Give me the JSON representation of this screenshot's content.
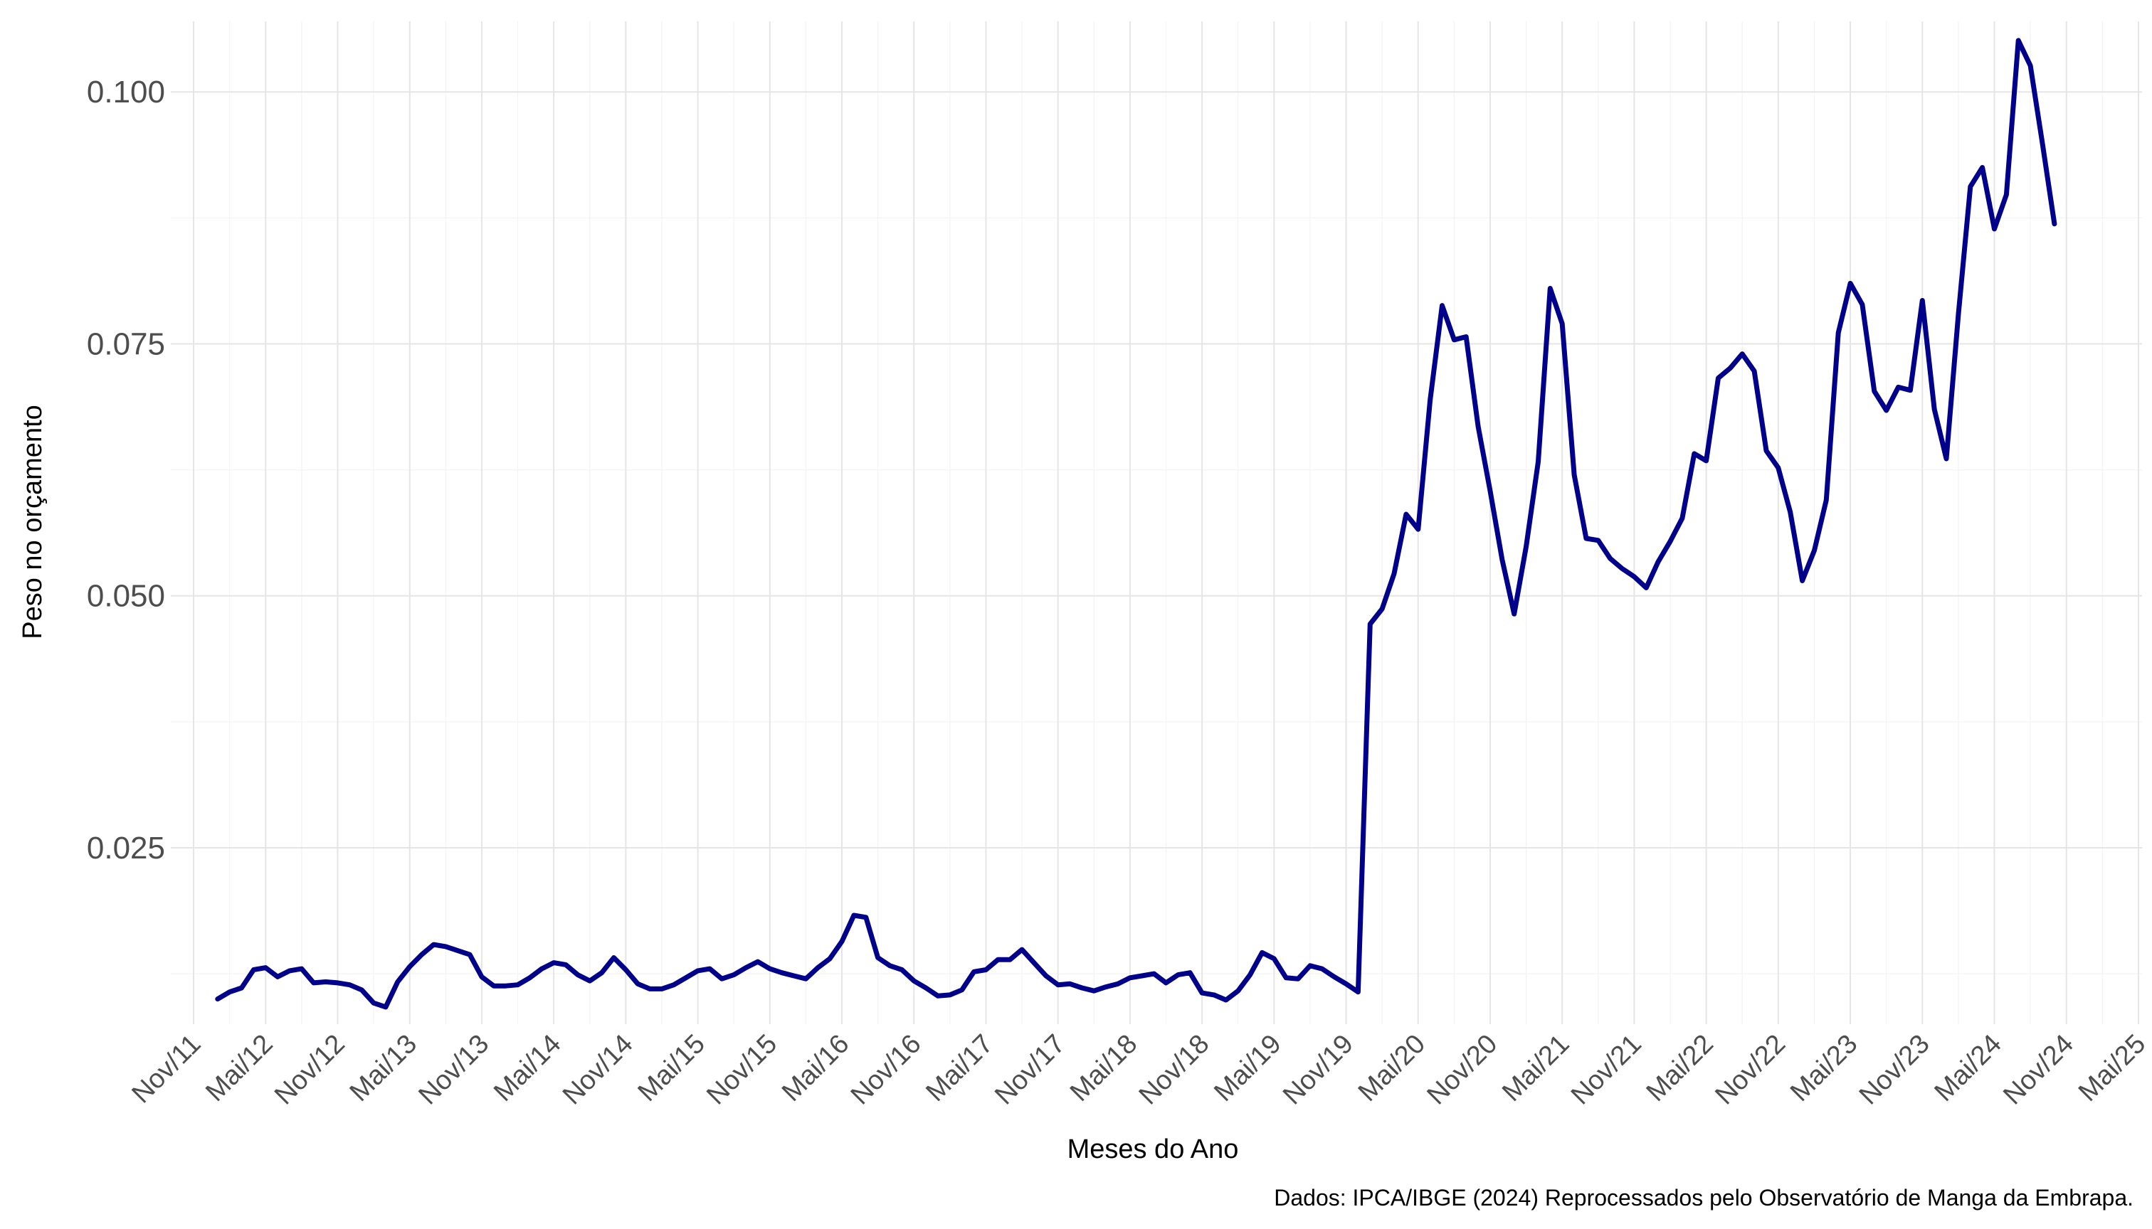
{
  "chart_data": {
    "type": "line",
    "title": "",
    "xlabel": "Meses do Ano",
    "ylabel": "Peso no orçamento",
    "caption": "Dados: IPCA/IBGE (2024) Reprocessados pelo Observatório de Manga da Embrapa.",
    "x_start": "2012-01",
    "x_step": "monthly",
    "xlim": [
      "2011-10",
      "2025-05"
    ],
    "ylim": [
      0.0075,
      0.107
    ],
    "y_ticks": [
      {
        "value": 0.025,
        "label": "0.025"
      },
      {
        "value": 0.05,
        "label": "0.050"
      },
      {
        "value": 0.075,
        "label": "0.075"
      },
      {
        "value": 0.1,
        "label": "0.100"
      }
    ],
    "x_ticks": [
      {
        "date": "2011-11",
        "label": "Nov/11"
      },
      {
        "date": "2012-05",
        "label": "Mai/12"
      },
      {
        "date": "2012-11",
        "label": "Nov/12"
      },
      {
        "date": "2013-05",
        "label": "Mai/13"
      },
      {
        "date": "2013-11",
        "label": "Nov/13"
      },
      {
        "date": "2014-05",
        "label": "Mai/14"
      },
      {
        "date": "2014-11",
        "label": "Nov/14"
      },
      {
        "date": "2015-05",
        "label": "Mai/15"
      },
      {
        "date": "2015-11",
        "label": "Nov/15"
      },
      {
        "date": "2016-05",
        "label": "Mai/16"
      },
      {
        "date": "2016-11",
        "label": "Nov/16"
      },
      {
        "date": "2017-05",
        "label": "Mai/17"
      },
      {
        "date": "2017-11",
        "label": "Nov/17"
      },
      {
        "date": "2018-05",
        "label": "Mai/18"
      },
      {
        "date": "2018-11",
        "label": "Nov/18"
      },
      {
        "date": "2019-05",
        "label": "Mai/19"
      },
      {
        "date": "2019-11",
        "label": "Nov/19"
      },
      {
        "date": "2020-05",
        "label": "Mai/20"
      },
      {
        "date": "2020-11",
        "label": "Nov/20"
      },
      {
        "date": "2021-05",
        "label": "Mai/21"
      },
      {
        "date": "2021-11",
        "label": "Nov/21"
      },
      {
        "date": "2022-05",
        "label": "Mai/22"
      },
      {
        "date": "2022-11",
        "label": "Nov/22"
      },
      {
        "date": "2023-05",
        "label": "Mai/23"
      },
      {
        "date": "2023-11",
        "label": "Nov/23"
      },
      {
        "date": "2024-05",
        "label": "Mai/24"
      },
      {
        "date": "2024-11",
        "label": "Nov/24"
      },
      {
        "date": "2025-05",
        "label": "Mai/25"
      }
    ],
    "grid": true,
    "legend": "none",
    "series": [
      {
        "color": "#00008b",
        "values": [
          0.01,
          0.0107,
          0.0111,
          0.0129,
          0.0131,
          0.0122,
          0.0128,
          0.013,
          0.0116,
          0.0117,
          0.0116,
          0.0114,
          0.0109,
          0.0096,
          0.0092,
          0.0117,
          0.0132,
          0.0144,
          0.0154,
          0.0152,
          0.0148,
          0.0144,
          0.0122,
          0.0113,
          0.0113,
          0.0114,
          0.0121,
          0.013,
          0.0136,
          0.0134,
          0.0124,
          0.0118,
          0.0126,
          0.0141,
          0.0129,
          0.0115,
          0.011,
          0.011,
          0.0114,
          0.0121,
          0.0128,
          0.013,
          0.012,
          0.0124,
          0.0131,
          0.0137,
          0.013,
          0.0126,
          0.0123,
          0.012,
          0.0131,
          0.014,
          0.0157,
          0.0183,
          0.0181,
          0.0141,
          0.0133,
          0.0129,
          0.0118,
          0.0111,
          0.0103,
          0.0104,
          0.0109,
          0.0127,
          0.0129,
          0.0139,
          0.0139,
          0.0149,
          0.0136,
          0.0123,
          0.0114,
          0.0115,
          0.0111,
          0.0108,
          0.0112,
          0.0115,
          0.0121,
          0.0123,
          0.0125,
          0.0116,
          0.0124,
          0.0126,
          0.0106,
          0.0104,
          0.0099,
          0.0108,
          0.0124,
          0.0146,
          0.014,
          0.0121,
          0.012,
          0.0133,
          0.013,
          0.0122,
          0.0115,
          0.0107,
          0.0472,
          0.0487,
          0.0522,
          0.0581,
          0.0566,
          0.0694,
          0.0788,
          0.0754,
          0.0757,
          0.0668,
          0.0604,
          0.0536,
          0.0482,
          0.0549,
          0.0633,
          0.0805,
          0.077,
          0.062,
          0.0557,
          0.0555,
          0.0537,
          0.0527,
          0.0519,
          0.0508,
          0.0534,
          0.0554,
          0.0577,
          0.0641,
          0.0634,
          0.0716,
          0.0726,
          0.074,
          0.0723,
          0.0644,
          0.0627,
          0.0583,
          0.0515,
          0.0545,
          0.0595,
          0.0761,
          0.081,
          0.0789,
          0.0703,
          0.0684,
          0.0707,
          0.0704,
          0.0793,
          0.0685,
          0.0636,
          0.0779,
          0.0906,
          0.0925,
          0.0864,
          0.0898,
          0.1051,
          0.1026,
          0.0949,
          0.0869
        ]
      }
    ]
  }
}
